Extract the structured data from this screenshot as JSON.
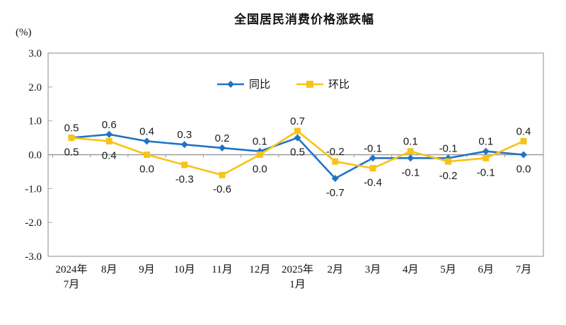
{
  "title": "全国居民消费价格涨跌幅",
  "y_unit_label": "(%)",
  "colors": {
    "tongbi_blue": "#2173C4",
    "huanbi_gold": "#F7C317",
    "frame_gray": "#A6A6A6",
    "zero_line_gray": "#9B9B9B",
    "text_black": "#111111",
    "background": "#FFFFFF"
  },
  "chart_data": {
    "type": "line",
    "title": "全国居民消费价格涨跌幅",
    "y_unit": "(%)",
    "ylim": [
      -3.0,
      3.0
    ],
    "y_ticks": [
      3.0,
      2.0,
      1.0,
      0.0,
      -1.0,
      -2.0,
      -3.0
    ],
    "categories": [
      [
        "2024年",
        "7月"
      ],
      [
        "8月"
      ],
      [
        "9月"
      ],
      [
        "10月"
      ],
      [
        "11月"
      ],
      [
        "12月"
      ],
      [
        "2025年",
        "1月"
      ],
      [
        "2月"
      ],
      [
        "3月"
      ],
      [
        "4月"
      ],
      [
        "5月"
      ],
      [
        "6月"
      ],
      [
        "7月"
      ]
    ],
    "series": [
      {
        "name": "同比",
        "color": "#2173C4",
        "marker": "diamond",
        "values": [
          0.5,
          0.6,
          0.4,
          0.3,
          0.2,
          0.1,
          0.5,
          -0.7,
          -0.1,
          -0.1,
          -0.1,
          0.1,
          0.0
        ]
      },
      {
        "name": "环比",
        "color": "#F7C317",
        "marker": "square",
        "values": [
          0.5,
          0.4,
          0.0,
          -0.3,
          -0.6,
          0.0,
          0.7,
          -0.2,
          -0.4,
          0.1,
          -0.2,
          -0.1,
          0.4
        ]
      }
    ],
    "legend_position": "top-center",
    "grid": false,
    "data_labels": true
  }
}
